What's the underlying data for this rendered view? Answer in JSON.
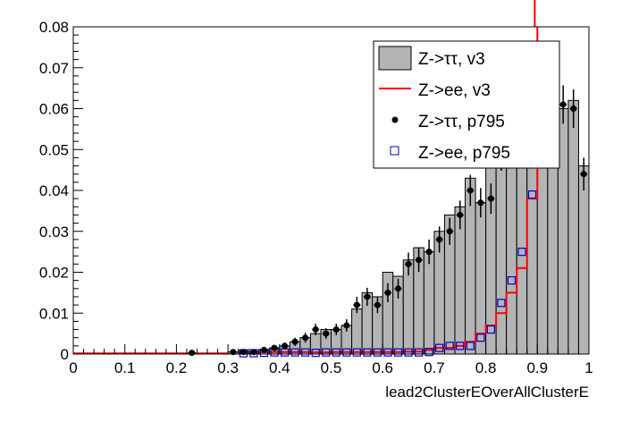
{
  "chart_data": {
    "type": "histogram",
    "xlabel": "lead2ClusterEOverAllClusterE",
    "ylabel": "",
    "xlim": [
      0,
      1
    ],
    "ylim": [
      0,
      0.08
    ],
    "x_ticks": [
      "0",
      "0.1",
      "0.2",
      "0.3",
      "0.4",
      "0.5",
      "0.6",
      "0.7",
      "0.8",
      "0.9",
      "1"
    ],
    "y_ticks": [
      "0",
      "0.01",
      "0.02",
      "0.03",
      "0.04",
      "0.05",
      "0.06",
      "0.07",
      "0.08"
    ],
    "bin_width": 0.02,
    "legend_position": "top-right",
    "colors": {
      "fill": "#b4b4b4",
      "line": "#ff0000",
      "marker": "#000000",
      "box": "#0000cc"
    },
    "series": [
      {
        "name": "Z->ττ, v3",
        "style": "filled-histogram",
        "x": [
          0.3,
          0.32,
          0.34,
          0.36,
          0.38,
          0.4,
          0.42,
          0.44,
          0.46,
          0.48,
          0.5,
          0.52,
          0.54,
          0.56,
          0.58,
          0.6,
          0.62,
          0.64,
          0.66,
          0.68,
          0.7,
          0.72,
          0.74,
          0.76,
          0.78,
          0.8,
          0.82,
          0.84,
          0.86,
          0.88,
          0.9,
          0.92,
          0.94,
          0.96,
          0.98
        ],
        "values": [
          0.0005,
          0.0008,
          0.0005,
          0.001,
          0.0015,
          0.002,
          0.003,
          0.004,
          0.005,
          0.006,
          0.006,
          0.007,
          0.011,
          0.015,
          0.014,
          0.02,
          0.019,
          0.023,
          0.026,
          0.025,
          0.03,
          0.034,
          0.036,
          0.043,
          0.037,
          0.051,
          0.051,
          0.052,
          0.055,
          0.062,
          0.068,
          0.064,
          0.06,
          0.062,
          0.046
        ]
      },
      {
        "name": "Z->ee, v3",
        "style": "line-histogram",
        "x": [
          0.32,
          0.34,
          0.36,
          0.38,
          0.4,
          0.42,
          0.44,
          0.46,
          0.48,
          0.5,
          0.52,
          0.54,
          0.56,
          0.58,
          0.6,
          0.62,
          0.64,
          0.66,
          0.68,
          0.7,
          0.72,
          0.74,
          0.76,
          0.78,
          0.8,
          0.82,
          0.84,
          0.86,
          0.88
        ],
        "values": [
          0.0003,
          0.0003,
          0.0005,
          0.0005,
          0.0005,
          0.0005,
          0.0005,
          0.0004,
          0.0004,
          0.0005,
          0.0005,
          0.0005,
          0.0005,
          0.0005,
          0.0005,
          0.0005,
          0.0006,
          0.0006,
          0.001,
          0.0015,
          0.0015,
          0.002,
          0.003,
          0.005,
          0.007,
          0.01,
          0.015,
          0.021,
          0.038
        ],
        "peak_x": 0.895,
        "peak_note": "rises off the top of the frame"
      },
      {
        "name": "Z->ττ, p795",
        "style": "points-with-errors",
        "x": [
          0.23,
          0.31,
          0.33,
          0.35,
          0.37,
          0.39,
          0.41,
          0.43,
          0.45,
          0.47,
          0.49,
          0.51,
          0.53,
          0.55,
          0.57,
          0.59,
          0.61,
          0.63,
          0.65,
          0.67,
          0.69,
          0.71,
          0.73,
          0.75,
          0.77,
          0.79,
          0.81,
          0.83,
          0.85,
          0.87,
          0.89,
          0.91,
          0.93,
          0.95,
          0.97,
          0.99
        ],
        "values": [
          0.0003,
          0.0005,
          0.0005,
          0.0005,
          0.001,
          0.0015,
          0.002,
          0.003,
          0.004,
          0.006,
          0.005,
          0.006,
          0.007,
          0.012,
          0.014,
          0.012,
          0.015,
          0.016,
          0.022,
          0.023,
          0.025,
          0.028,
          0.03,
          0.034,
          0.04,
          0.037,
          0.038,
          0.049,
          0.057,
          0.061,
          0.066,
          0.062,
          0.063,
          0.061,
          0.06,
          0.044
        ],
        "errors": [
          0.0003,
          0.0004,
          0.0004,
          0.0004,
          0.0006,
          0.0007,
          0.0008,
          0.001,
          0.0012,
          0.0014,
          0.0013,
          0.0014,
          0.0015,
          0.002,
          0.0022,
          0.002,
          0.0023,
          0.0024,
          0.0028,
          0.0029,
          0.003,
          0.0032,
          0.0033,
          0.0035,
          0.0038,
          0.0036,
          0.0037,
          0.0042,
          0.0045,
          0.0047,
          0.0049,
          0.0047,
          0.0048,
          0.0047,
          0.0047,
          0.004
        ]
      },
      {
        "name": "Z->ee, p795",
        "style": "open-squares",
        "x": [
          0.33,
          0.35,
          0.37,
          0.39,
          0.41,
          0.43,
          0.45,
          0.47,
          0.49,
          0.51,
          0.53,
          0.55,
          0.57,
          0.59,
          0.61,
          0.63,
          0.65,
          0.67,
          0.69,
          0.71,
          0.73,
          0.75,
          0.77,
          0.79,
          0.81,
          0.83,
          0.85,
          0.87,
          0.89
        ],
        "values": [
          0.0002,
          0.0002,
          0.0003,
          0.0004,
          0.0004,
          0.0004,
          0.0004,
          0.0003,
          0.0004,
          0.0004,
          0.0004,
          0.0004,
          0.0004,
          0.0004,
          0.0004,
          0.0004,
          0.0004,
          0.0004,
          0.0005,
          0.0015,
          0.002,
          0.002,
          0.002,
          0.004,
          0.006,
          0.0125,
          0.018,
          0.025,
          0.039
        ]
      }
    ]
  }
}
